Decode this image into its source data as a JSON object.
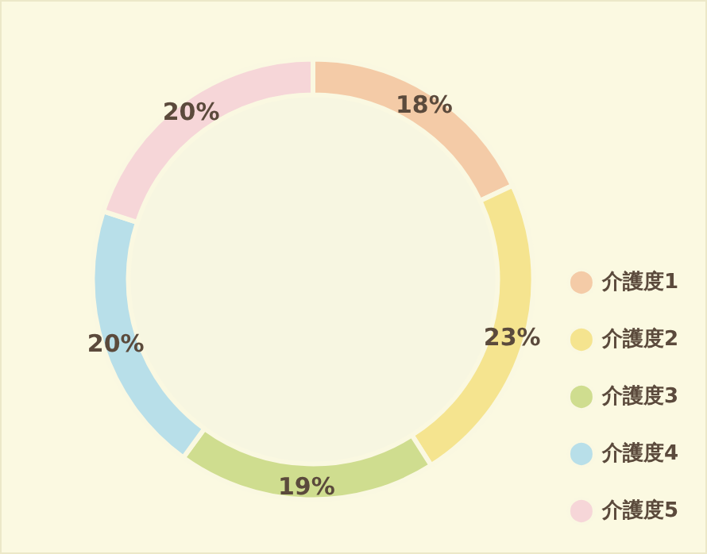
{
  "chart_data": {
    "type": "donut",
    "categories": [
      "介護度1",
      "介護度2",
      "介護度3",
      "介護度4",
      "介護度5"
    ],
    "values": [
      18,
      23,
      19,
      20,
      20
    ],
    "value_labels": [
      "18%",
      "23%",
      "19%",
      "20%",
      "20%"
    ],
    "colors": [
      "#f4cba7",
      "#f5e48f",
      "#cfdd8f",
      "#b8dfe9",
      "#f6d6d8"
    ],
    "legend": "right"
  }
}
